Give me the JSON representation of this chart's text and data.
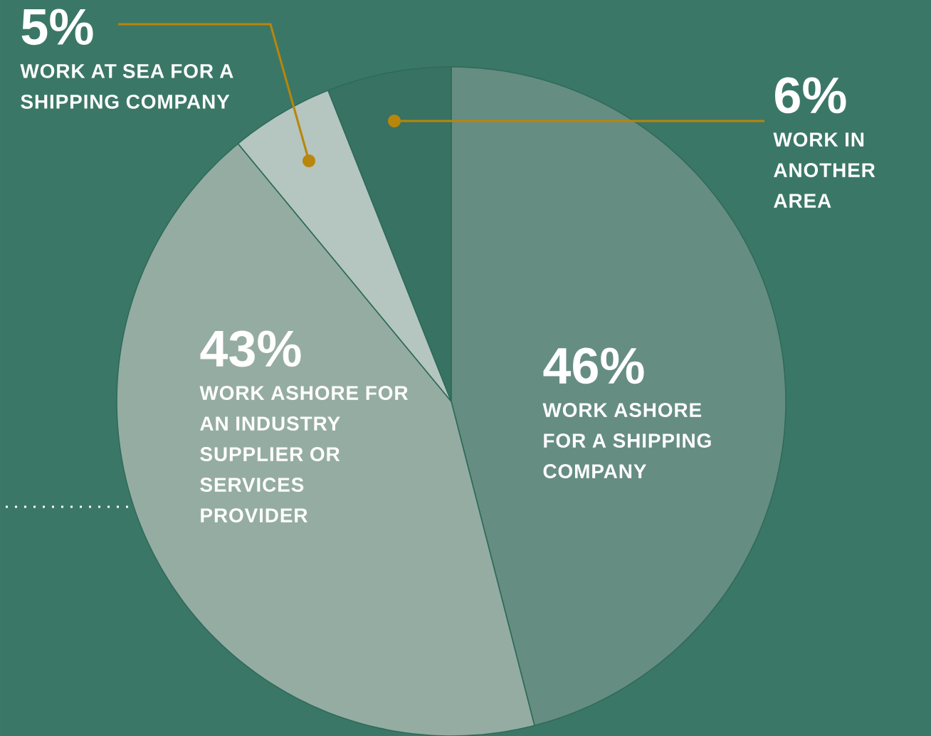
{
  "chart_data": {
    "type": "pie",
    "categories": [
      "WORK ASHORE FOR A SHIPPING COMPANY",
      "WORK ASHORE FOR AN INDUSTRY SUPPLIER OR SERVICES PROVIDER",
      "WORK AT SEA FOR A SHIPPING COMPANY",
      "WORK IN ANOTHER AREA"
    ],
    "values": [
      46,
      43,
      5,
      6
    ],
    "value_labels": [
      "46%",
      "43%",
      "5%",
      "6%"
    ],
    "colors": [
      "#668d82",
      "#95aca2",
      "#b5c5bf",
      "#377262"
    ]
  }
}
